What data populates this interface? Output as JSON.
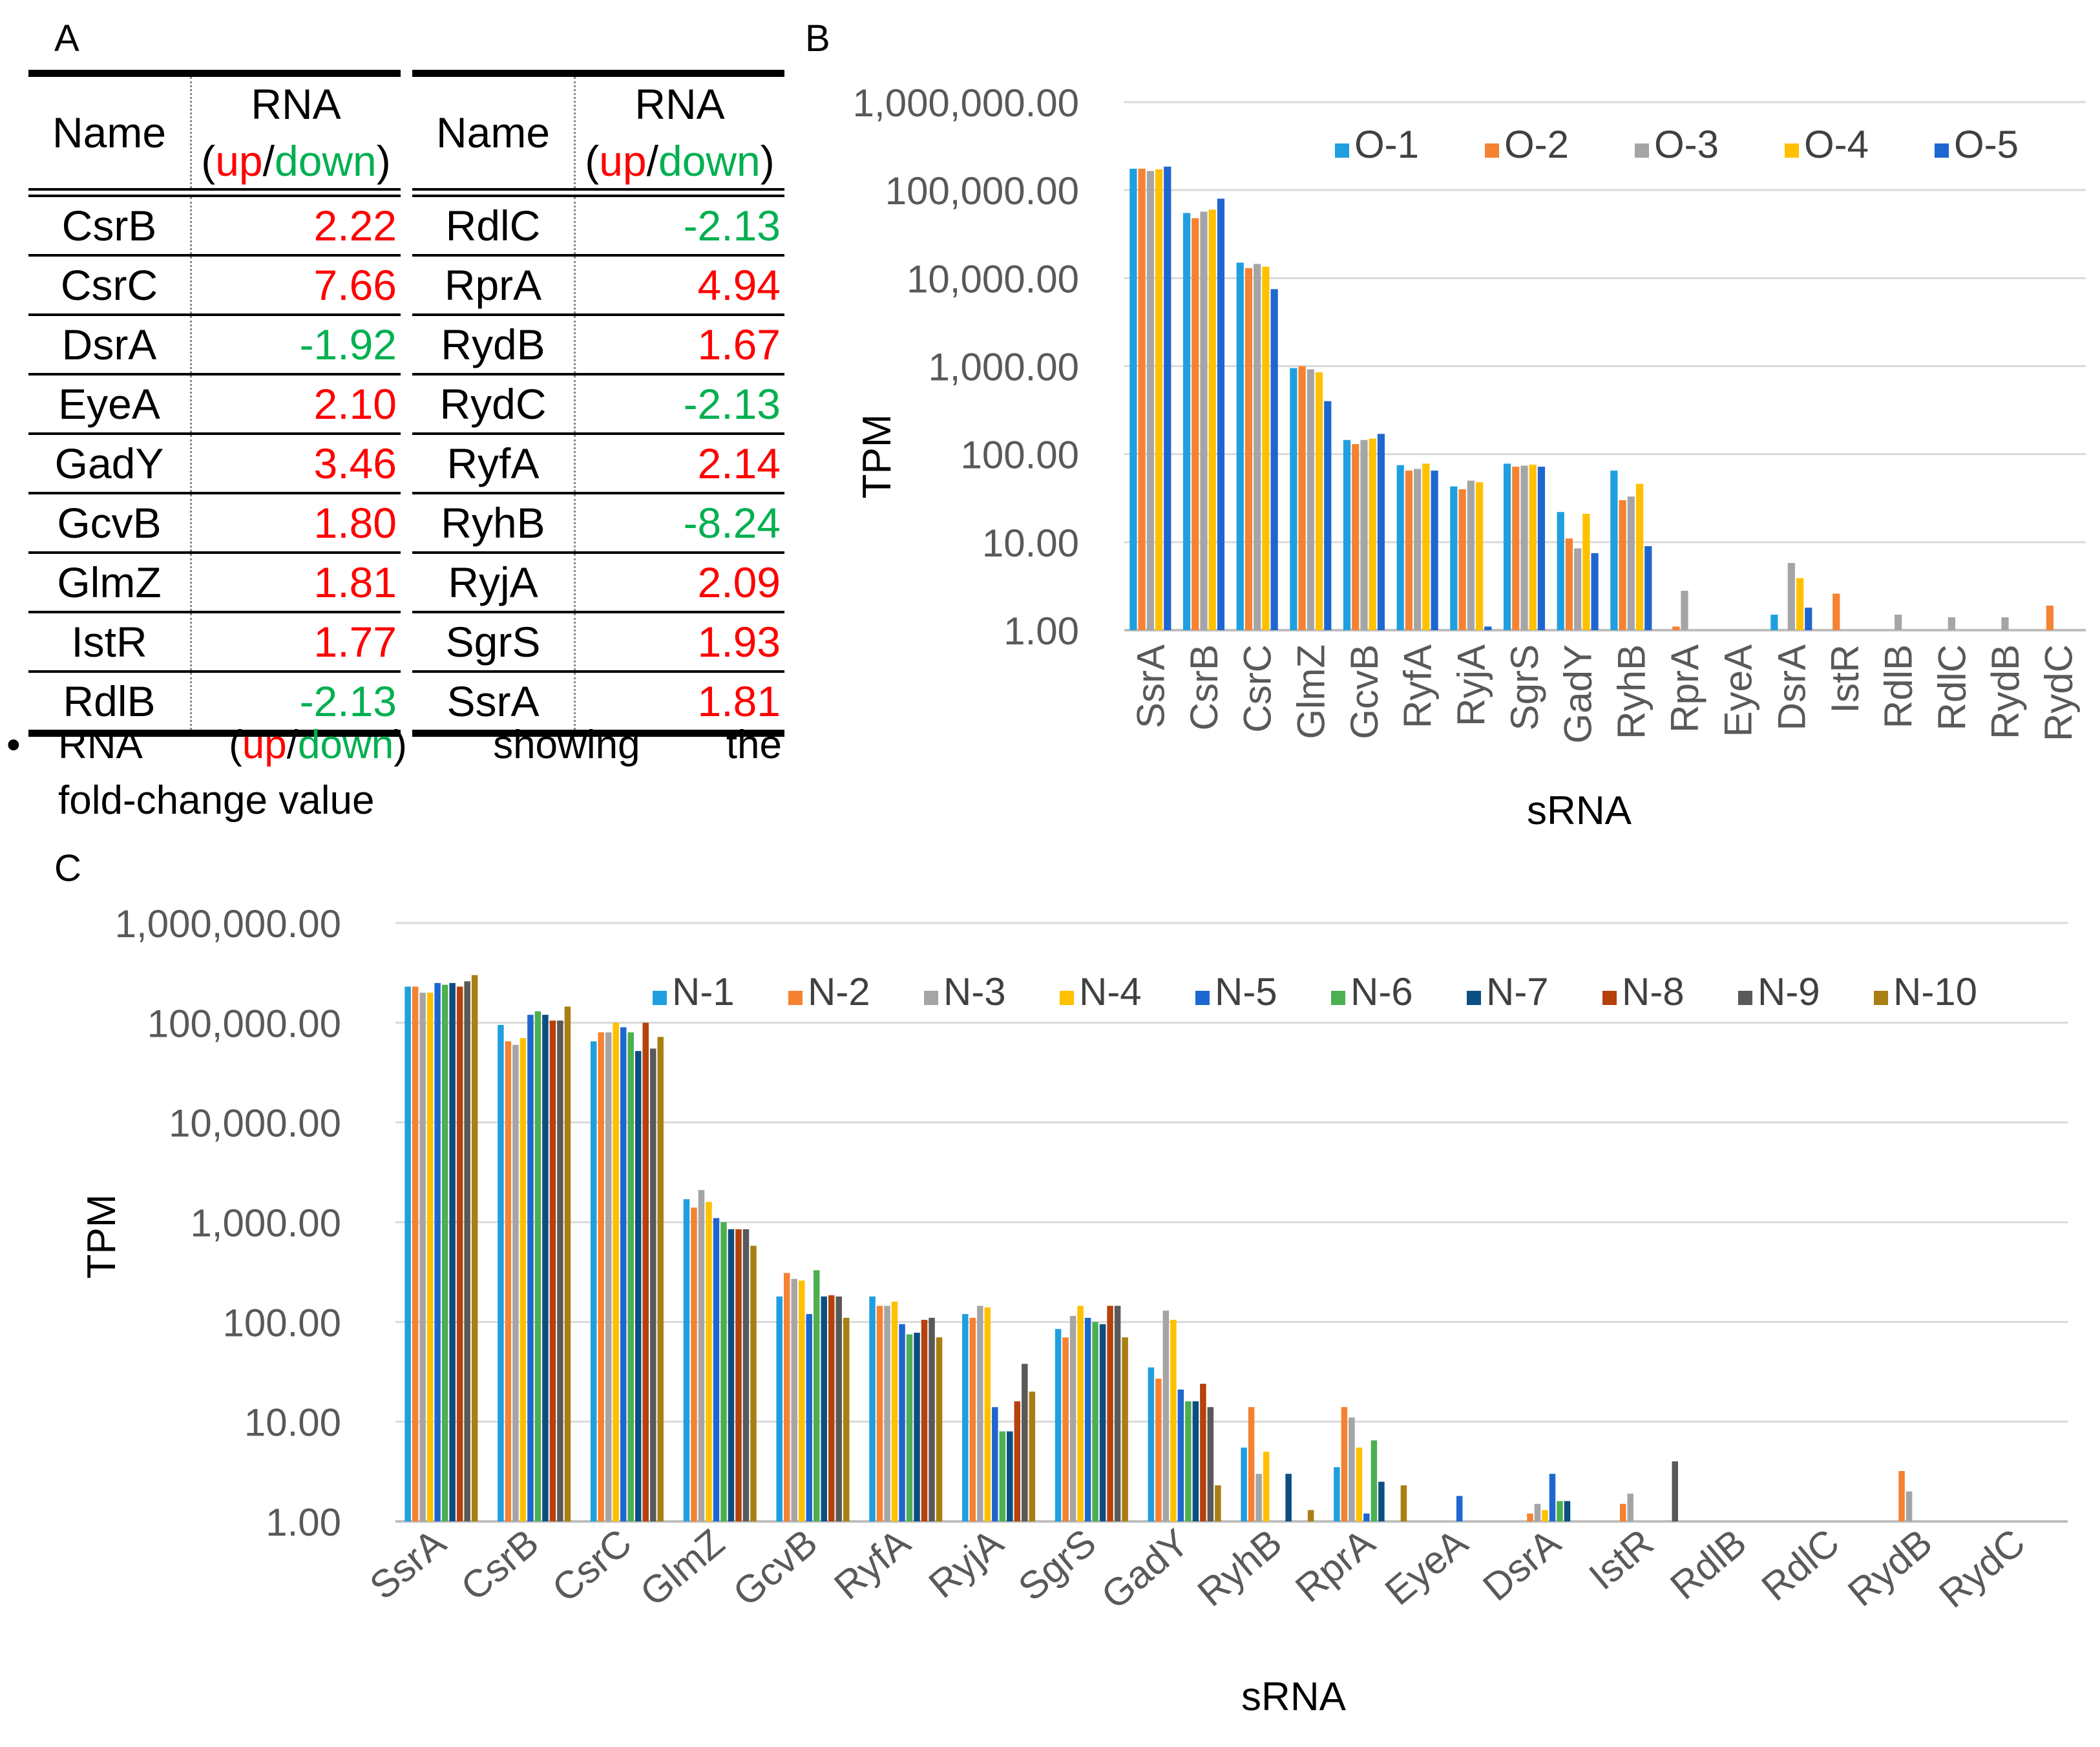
{
  "panels": {
    "a": "A",
    "b": "B",
    "c": "C"
  },
  "colors": {
    "up": "#ff0000",
    "down": "#00b050"
  },
  "table": {
    "header_name": "Name",
    "header_rna": "RNA",
    "header_open": "(",
    "header_up": "up",
    "header_slash": "/",
    "header_down": "down",
    "header_close": ")",
    "left_rows": [
      {
        "name": "CsrB",
        "value": "2.22",
        "dir": "up"
      },
      {
        "name": "CsrC",
        "value": "7.66",
        "dir": "up"
      },
      {
        "name": "DsrA",
        "value": "-1.92",
        "dir": "down"
      },
      {
        "name": "EyeA",
        "value": "2.10",
        "dir": "up"
      },
      {
        "name": "GadY",
        "value": "3.46",
        "dir": "up"
      },
      {
        "name": "GcvB",
        "value": "1.80",
        "dir": "up"
      },
      {
        "name": "GlmZ",
        "value": "1.81",
        "dir": "up"
      },
      {
        "name": "IstR",
        "value": "1.77",
        "dir": "up"
      },
      {
        "name": "RdlB",
        "value": "-2.13",
        "dir": "down"
      }
    ],
    "right_rows": [
      {
        "name": "RdlC",
        "value": "-2.13",
        "dir": "down"
      },
      {
        "name": "RprA",
        "value": "4.94",
        "dir": "up"
      },
      {
        "name": "RydB",
        "value": "1.67",
        "dir": "up"
      },
      {
        "name": "RydC",
        "value": "-2.13",
        "dir": "down"
      },
      {
        "name": "RyfA",
        "value": "2.14",
        "dir": "up"
      },
      {
        "name": "RyhB",
        "value": "-8.24",
        "dir": "down"
      },
      {
        "name": "RyjA",
        "value": "2.09",
        "dir": "up"
      },
      {
        "name": "SgrS",
        "value": "1.93",
        "dir": "up"
      },
      {
        "name": "SsrA",
        "value": "1.81",
        "dir": "up"
      }
    ],
    "note_bullet": "•",
    "note_words": [
      "RNA",
      "(",
      "up",
      "/",
      "down",
      ")",
      "showing",
      "the"
    ],
    "note_line2": "fold-change value"
  },
  "chart_data": [
    {
      "panel": "B",
      "type": "bar",
      "scale": "log",
      "xlabel": "sRNA",
      "ylabel": "TPM",
      "ylim": [
        1,
        1000000
      ],
      "yticks": [
        1,
        10,
        100,
        1000,
        10000,
        100000,
        1000000
      ],
      "ytick_labels": [
        "1.00",
        "10.00",
        "100.00",
        "1,000.00",
        "10,000.00",
        "100,000.00",
        "1,000,000.00"
      ],
      "categories": [
        "SsrA",
        "CsrB",
        "CsrC",
        "GlmZ",
        "GcvB",
        "RyfA",
        "RyjA",
        "SgrS",
        "GadY",
        "RyhB",
        "RprA",
        "EyeA",
        "DsrA",
        "IstR",
        "RdlB",
        "RdlC",
        "RydB",
        "RydC"
      ],
      "series": [
        {
          "name": "O-1",
          "color": "#1f9fe0",
          "values": [
            175000,
            55000,
            15000,
            950,
            145,
            75,
            43,
            78,
            22,
            65,
            0,
            0,
            1.5,
            0,
            0,
            0,
            0,
            0
          ]
        },
        {
          "name": "O-2",
          "color": "#f58231",
          "values": [
            175000,
            48000,
            13000,
            1000,
            130,
            65,
            40,
            72,
            11,
            30,
            1.1,
            0,
            0,
            2.6,
            0,
            0,
            0,
            1.9
          ]
        },
        {
          "name": "O-3",
          "color": "#a5a5a5",
          "values": [
            165000,
            57000,
            14500,
            920,
            145,
            68,
            50,
            74,
            8.5,
            33,
            2.8,
            0,
            5.8,
            0,
            1.5,
            1.4,
            1.4,
            0
          ]
        },
        {
          "name": "O-4",
          "color": "#ffc000",
          "values": [
            172000,
            60000,
            13500,
            850,
            150,
            78,
            48,
            76,
            21,
            46,
            0,
            0,
            3.9,
            0,
            0,
            0,
            0,
            0
          ]
        },
        {
          "name": "O-5",
          "color": "#1f67d0",
          "values": [
            185000,
            80000,
            7500,
            400,
            170,
            65,
            1.1,
            72,
            7.5,
            9,
            0,
            0,
            1.8,
            0,
            0,
            0,
            0,
            0
          ]
        }
      ]
    },
    {
      "panel": "C",
      "type": "bar",
      "scale": "log",
      "xlabel": "sRNA",
      "ylabel": "TPM",
      "ylim": [
        1,
        1000000
      ],
      "yticks": [
        1,
        10,
        100,
        1000,
        10000,
        100000,
        1000000
      ],
      "ytick_labels": [
        "1.00",
        "10.00",
        "100.00",
        "1,000.00",
        "10,000.00",
        "100,000.00",
        "1,000,000.00"
      ],
      "categories": [
        "SsrA",
        "CsrB",
        "CsrC",
        "GlmZ",
        "GcvB",
        "RyfA",
        "RyjA",
        "SgrS",
        "GadY",
        "RyhB",
        "RprA",
        "EyeA",
        "DsrA",
        "IstR",
        "RdlB",
        "RdlC",
        "RydB",
        "RydC"
      ],
      "series": [
        {
          "name": "N-1",
          "color": "#1f9fe0",
          "values": [
            230000,
            95000,
            65000,
            1700,
            180,
            180,
            120,
            85,
            35,
            5.5,
            3.5,
            0,
            0,
            0,
            0,
            0,
            0,
            0
          ]
        },
        {
          "name": "N-2",
          "color": "#f58231",
          "values": [
            230000,
            65000,
            80000,
            1400,
            310,
            145,
            110,
            70,
            27,
            14,
            14,
            0,
            1.2,
            1.5,
            0,
            0,
            3.2,
            0
          ]
        },
        {
          "name": "N-3",
          "color": "#a5a5a5",
          "values": [
            200000,
            60000,
            80000,
            2100,
            270,
            145,
            145,
            115,
            130,
            3,
            11,
            0,
            1.5,
            1.9,
            0,
            0,
            2,
            0
          ]
        },
        {
          "name": "N-4",
          "color": "#ffc000",
          "values": [
            200000,
            70000,
            100000,
            1600,
            260,
            160,
            140,
            145,
            105,
            5,
            5.5,
            0,
            1.3,
            0,
            0,
            0,
            0,
            0
          ]
        },
        {
          "name": "N-5",
          "color": "#1f67d0",
          "values": [
            250000,
            120000,
            90000,
            1100,
            120,
            95,
            14,
            110,
            21,
            0,
            1.2,
            1.8,
            3,
            0,
            0,
            0,
            0,
            0
          ]
        },
        {
          "name": "N-6",
          "color": "#4caf50",
          "values": [
            240000,
            130000,
            80000,
            1000,
            330,
            75,
            8,
            100,
            16,
            0,
            6.5,
            0,
            1.6,
            0,
            0,
            0,
            0,
            0
          ]
        },
        {
          "name": "N-7",
          "color": "#0b4f82",
          "values": [
            250000,
            120000,
            52000,
            850,
            180,
            78,
            8,
            95,
            16,
            3,
            2.5,
            0,
            1.6,
            0,
            0,
            0,
            0,
            0
          ]
        },
        {
          "name": "N-8",
          "color": "#b5410c",
          "values": [
            230000,
            105000,
            100000,
            850,
            185,
            105,
            16,
            145,
            24,
            0,
            0,
            0,
            0,
            0,
            0,
            0,
            0,
            0
          ]
        },
        {
          "name": "N-9",
          "color": "#595959",
          "values": [
            260000,
            105000,
            55000,
            850,
            180,
            110,
            38,
            145,
            14,
            0,
            0,
            0,
            0,
            4,
            0,
            0,
            0,
            0
          ]
        },
        {
          "name": "N-10",
          "color": "#a87f14",
          "values": [
            300000,
            145000,
            72000,
            580,
            110,
            70,
            20,
            70,
            2.3,
            1.3,
            2.3,
            0,
            0,
            0,
            0,
            0,
            0,
            0
          ]
        }
      ]
    }
  ]
}
